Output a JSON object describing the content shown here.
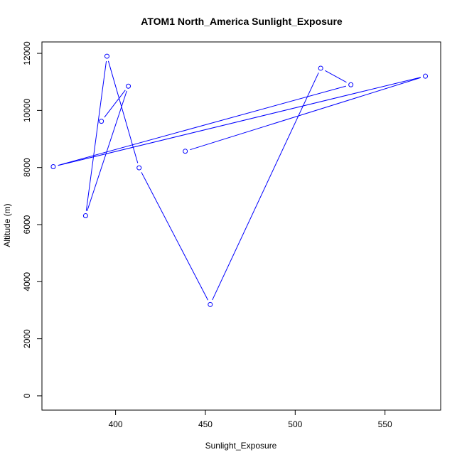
{
  "chart_data": {
    "type": "line",
    "title": "ATOM1 North_America Sunlight_Exposure",
    "xlabel": "Sunlight_Exposure",
    "ylabel": "Altitude (m)",
    "xlim": [
      359,
      581
    ],
    "ylim": [
      -500,
      12400
    ],
    "xticks": [
      400,
      450,
      500,
      550
    ],
    "yticks": [
      0,
      2000,
      4000,
      6000,
      8000,
      10000,
      12000
    ],
    "grid": false,
    "colors": {
      "series": "#0000ff",
      "axes": "#000000"
    },
    "series": [
      {
        "marker": "open-circle",
        "points": [
          {
            "x": 438.8,
            "y": 8570
          },
          {
            "x": 572.5,
            "y": 11200
          },
          {
            "x": 365.3,
            "y": 8030
          },
          {
            "x": 531.0,
            "y": 10900
          },
          {
            "x": 514.2,
            "y": 11480
          },
          {
            "x": 452.7,
            "y": 3200
          },
          {
            "x": 413.1,
            "y": 7990
          },
          {
            "x": 395.2,
            "y": 11900
          },
          {
            "x": 383.3,
            "y": 6310
          },
          {
            "x": 407.1,
            "y": 10850
          },
          {
            "x": 392.1,
            "y": 9620
          }
        ]
      }
    ]
  }
}
